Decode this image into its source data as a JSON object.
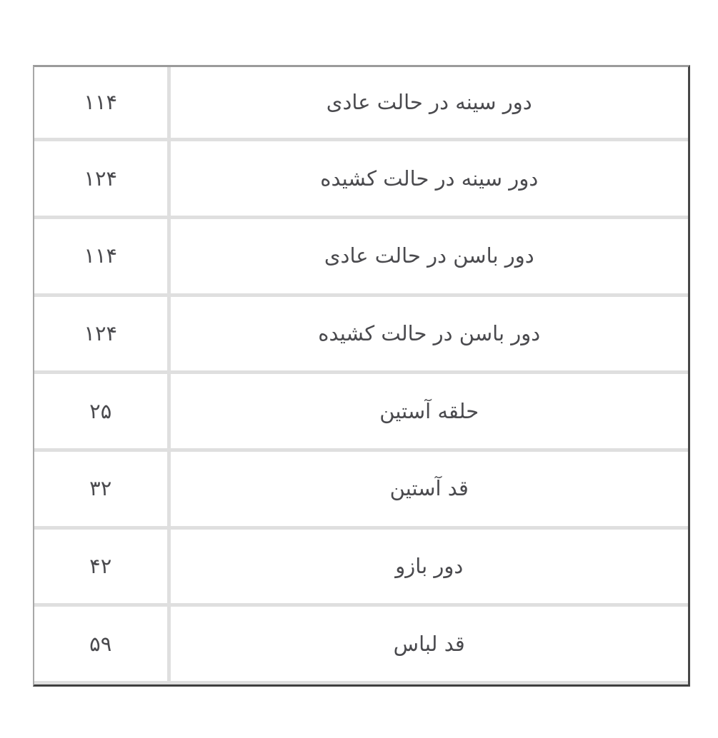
{
  "page": {
    "background_color": "#ffffff",
    "direction": "rtl"
  },
  "size_table": {
    "colors": {
      "outer_border_top": "#9b9b9b",
      "outer_border_left": "#a8a8a8",
      "outer_border_right": "#474747",
      "outer_border_bottom": "#3f3f3f",
      "grid_line": "#dfdfdf",
      "text": "#4a4a4e",
      "cell_background": "#ffffff"
    },
    "rows": [
      {
        "value": "۱۱۴",
        "label": "دور سینه در حالت عادی"
      },
      {
        "value": "۱۲۴",
        "label": "دور سینه در حالت کشیده"
      },
      {
        "value": "۱۱۴",
        "label": "دور باسن در حالت عادی"
      },
      {
        "value": "۱۲۴",
        "label": "دور باسن در حالت کشیده"
      },
      {
        "value": "۲۵",
        "label": "حلقه آستین"
      },
      {
        "value": "۳۲",
        "label": "قد آستین"
      },
      {
        "value": "۴۲",
        "label": "دور بازو"
      },
      {
        "value": "۵۹",
        "label": "قد لباس"
      }
    ]
  }
}
